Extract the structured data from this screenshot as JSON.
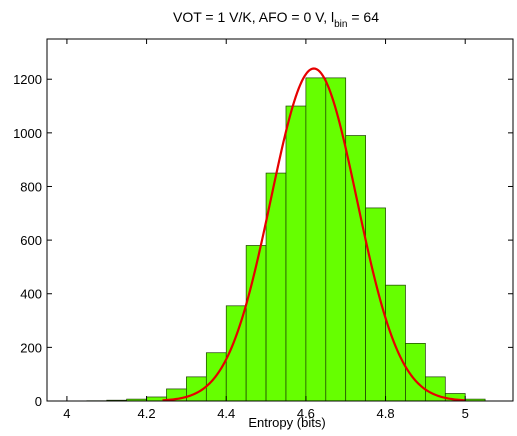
{
  "chart_data": {
    "type": "bar",
    "title_parts": {
      "main": "VOT = 1 V/K, AFO = 0 V, l",
      "subscript": "bin",
      "tail": " = 64"
    },
    "xlabel": "Entropy (bits)",
    "ylabel": "",
    "xlim": [
      3.95,
      5.12
    ],
    "ylim": [
      0,
      1350
    ],
    "xticks": [
      4,
      4.2,
      4.4,
      4.6,
      4.8,
      5
    ],
    "xtick_labels": [
      "4",
      "4.2",
      "4.4",
      "4.6",
      "4.8",
      "5"
    ],
    "yticks": [
      0,
      200,
      400,
      600,
      800,
      1000,
      1200
    ],
    "ytick_labels": [
      "0",
      "200",
      "400",
      "600",
      "800",
      "1000",
      "1200"
    ],
    "grid": false,
    "bin_width": 0.05,
    "bins": [
      {
        "center": 4.075,
        "value": 1
      },
      {
        "center": 4.125,
        "value": 3
      },
      {
        "center": 4.175,
        "value": 7
      },
      {
        "center": 4.225,
        "value": 15
      },
      {
        "center": 4.275,
        "value": 45
      },
      {
        "center": 4.325,
        "value": 90
      },
      {
        "center": 4.375,
        "value": 180
      },
      {
        "center": 4.425,
        "value": 355
      },
      {
        "center": 4.475,
        "value": 580
      },
      {
        "center": 4.525,
        "value": 850
      },
      {
        "center": 4.575,
        "value": 1100
      },
      {
        "center": 4.625,
        "value": 1205
      },
      {
        "center": 4.675,
        "value": 1205
      },
      {
        "center": 4.725,
        "value": 990
      },
      {
        "center": 4.775,
        "value": 720
      },
      {
        "center": 4.825,
        "value": 432
      },
      {
        "center": 4.875,
        "value": 215
      },
      {
        "center": 4.925,
        "value": 90
      },
      {
        "center": 4.975,
        "value": 28
      },
      {
        "center": 5.025,
        "value": 7
      }
    ],
    "fit_curve": {
      "type": "normal",
      "mean": 4.62,
      "std": 0.108,
      "peak": 1240,
      "x_range": [
        4.24,
        5.0
      ]
    },
    "colors": {
      "bar_fill": "#66ff00",
      "bar_edge": "#1a3d00",
      "fit_line": "#e60000",
      "axis": "#000000"
    }
  }
}
